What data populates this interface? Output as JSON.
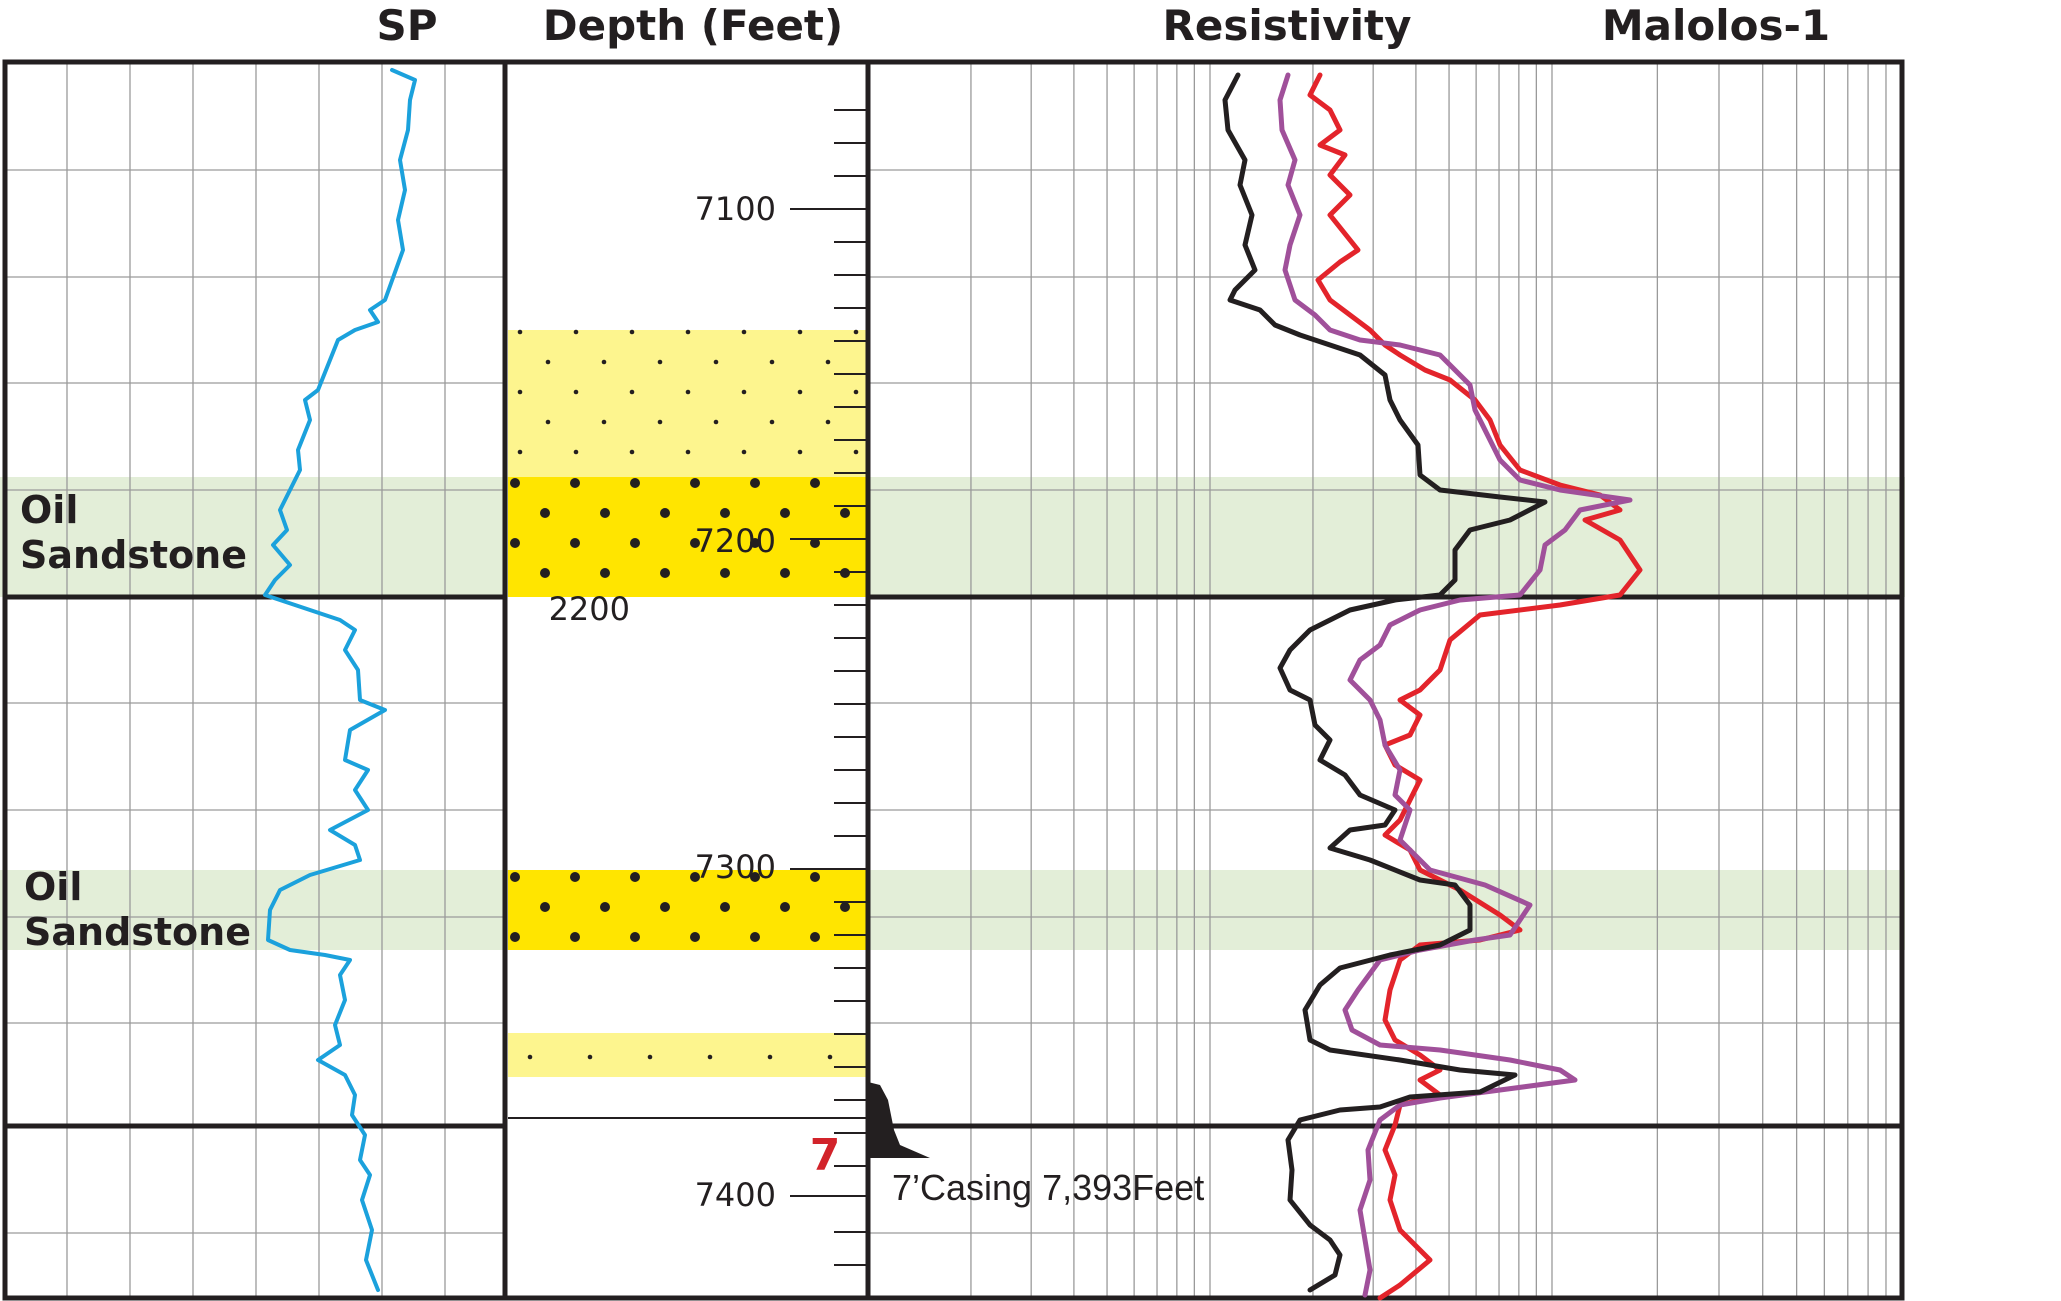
{
  "headers": {
    "sp": "SP",
    "depth": "Depth (Feet)",
    "resistivity": "Resistivity",
    "well": "Malolos-1"
  },
  "zones": [
    {
      "line1": "Oil",
      "line2": "Sandstone"
    },
    {
      "line1": "Oil",
      "line2": "Sandstone"
    }
  ],
  "depth_labels": [
    "7100",
    "7200",
    "2200",
    "7300",
    "7400"
  ],
  "casing": {
    "mark": "7",
    "label": "7’Casing 7,393Feet"
  },
  "colors": {
    "frame": "#231f20",
    "grid": "#9a9a9a",
    "sp_curve": "#1ba1dc",
    "deep_res": "#231f20",
    "medium_res": "#a0509a",
    "shallow_res": "#e3242b",
    "oil_zone": "#e3eed8",
    "sand_light": "#fdf58e",
    "sand_bright": "#ffe500",
    "casing_mark": "#d2232a"
  },
  "lithology": [
    {
      "type": "sand-light",
      "dots": "sparse"
    },
    {
      "type": "sand-bright",
      "dots": "dense"
    },
    {
      "type": "sand-bright",
      "dots": "dense"
    },
    {
      "type": "sand-light",
      "dots": "sparse"
    }
  ]
}
